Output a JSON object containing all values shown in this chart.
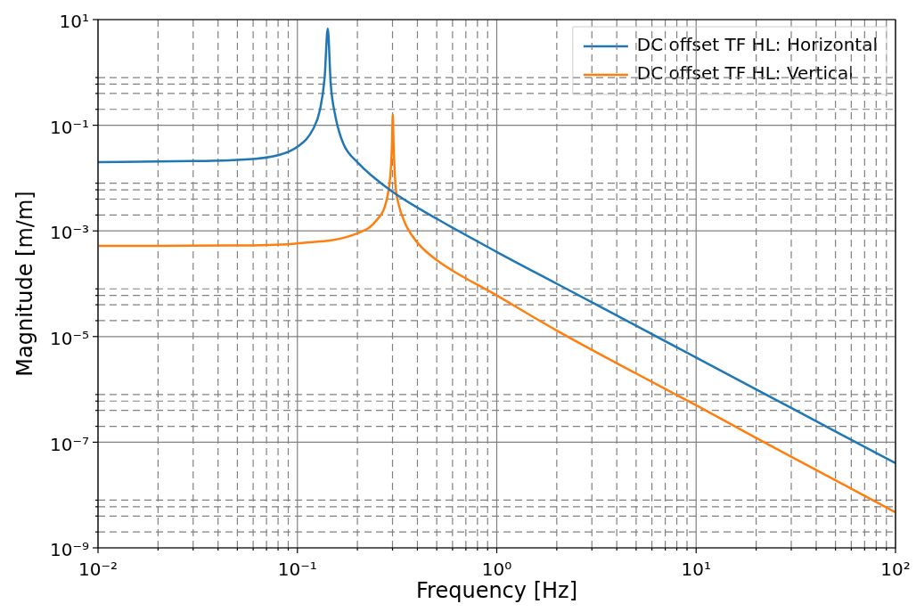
{
  "chart_data": {
    "type": "line",
    "xlabel": "Frequency [Hz]",
    "ylabel": "Magnitude [m/m]",
    "log": "xy",
    "grid": true,
    "legend": "top right",
    "line_style": "solid",
    "marker": "none",
    "xlim": [
      0.01,
      100
    ],
    "ylim": [
      1e-09,
      10
    ],
    "xticks": [
      {
        "value": 0.01,
        "label": "10⁻²"
      },
      {
        "value": 0.1,
        "label": "10⁻¹"
      },
      {
        "value": 1,
        "label": "10⁰"
      },
      {
        "value": 10,
        "label": "10¹"
      },
      {
        "value": 100,
        "label": "10²"
      },
      {
        "value": 0.02,
        "label": null
      },
      {
        "value": 0.03,
        "label": null
      },
      {
        "value": 0.04,
        "label": null
      },
      {
        "value": 0.05,
        "label": null
      },
      {
        "value": 0.06,
        "label": null
      },
      {
        "value": 0.07,
        "label": null
      },
      {
        "value": 0.08,
        "label": null
      },
      {
        "value": 0.09,
        "label": null
      },
      {
        "value": 0.2,
        "label": null
      },
      {
        "value": 0.3,
        "label": null
      },
      {
        "value": 0.4,
        "label": null
      },
      {
        "value": 0.5,
        "label": null
      },
      {
        "value": 0.6,
        "label": null
      },
      {
        "value": 0.7,
        "label": null
      },
      {
        "value": 0.8,
        "label": null
      },
      {
        "value": 0.9,
        "label": null
      },
      {
        "value": 2,
        "label": null
      },
      {
        "value": 3,
        "label": null
      },
      {
        "value": 4,
        "label": null
      },
      {
        "value": 5,
        "label": null
      },
      {
        "value": 6,
        "label": null
      },
      {
        "value": 7,
        "label": null
      },
      {
        "value": 8,
        "label": null
      },
      {
        "value": 9,
        "label": null
      },
      {
        "value": 20,
        "label": null
      },
      {
        "value": 30,
        "label": null
      },
      {
        "value": 40,
        "label": null
      },
      {
        "value": 50,
        "label": null
      },
      {
        "value": 60,
        "label": null
      },
      {
        "value": 70,
        "label": null
      },
      {
        "value": 80,
        "label": null
      },
      {
        "value": 90,
        "label": null
      }
    ],
    "yticks": [
      {
        "value": 1e-09,
        "label": "10⁻⁹"
      },
      {
        "value": 1e-07,
        "label": "10⁻⁷"
      },
      {
        "value": 1e-05,
        "label": "10⁻⁵"
      },
      {
        "value": 0.001,
        "label": "10⁻³"
      },
      {
        "value": 0.1,
        "label": "10⁻¹"
      },
      {
        "value": 10,
        "label": "10¹"
      },
      {
        "value": 2e-09,
        "label": null
      },
      {
        "value": 4e-09,
        "label": null
      },
      {
        "value": 6e-09,
        "label": null
      },
      {
        "value": 8e-09,
        "label": null
      },
      {
        "value": 2e-07,
        "label": null
      },
      {
        "value": 4e-07,
        "label": null
      },
      {
        "value": 6e-07,
        "label": null
      },
      {
        "value": 8e-07,
        "label": null
      },
      {
        "value": 2e-05,
        "label": null
      },
      {
        "value": 4e-05,
        "label": null
      },
      {
        "value": 6e-05,
        "label": null
      },
      {
        "value": 8e-05,
        "label": null
      },
      {
        "value": 0.002,
        "label": null
      },
      {
        "value": 0.004,
        "label": null
      },
      {
        "value": 0.006,
        "label": null
      },
      {
        "value": 0.008,
        "label": null
      },
      {
        "value": 0.2,
        "label": null
      },
      {
        "value": 0.4,
        "label": null
      },
      {
        "value": 0.6,
        "label": null
      },
      {
        "value": 0.8,
        "label": null
      }
    ],
    "series": [
      {
        "name": "DC offset TF HL: Horizontal",
        "color": "#1f77b4",
        "x": [
          0.01,
          0.03,
          0.05,
          0.08,
          0.1,
          0.12,
          0.13,
          0.137,
          0.142,
          0.147,
          0.155,
          0.17,
          0.2,
          0.3,
          0.5,
          1,
          2,
          5,
          10,
          20,
          50,
          100
        ],
        "values": [
          0.02,
          0.021,
          0.022,
          0.027,
          0.039,
          0.085,
          0.2,
          0.8,
          6.8,
          0.6,
          0.15,
          0.045,
          0.02,
          0.0055,
          0.0017,
          0.0004,
          0.0001,
          1.6e-05,
          4e-06,
          1e-06,
          1.6e-07,
          4e-08
        ]
      },
      {
        "name": "DC offset TF HL: Vertical",
        "color": "#ff7f0e",
        "x": [
          0.01,
          0.05,
          0.1,
          0.2,
          0.25,
          0.28,
          0.293,
          0.298,
          0.301,
          0.304,
          0.31,
          0.32,
          0.35,
          0.4,
          0.5,
          1,
          2,
          5,
          10,
          20,
          50,
          100
        ],
        "values": [
          0.00052,
          0.00053,
          0.00058,
          0.0009,
          0.0016,
          0.0038,
          0.012,
          0.04,
          0.16,
          0.04,
          0.008,
          0.0035,
          0.0013,
          0.0006,
          0.00028,
          6e-05,
          1.3e-05,
          2e-06,
          5e-07,
          1.2e-07,
          1.9e-08,
          4.7e-09
        ]
      }
    ]
  }
}
